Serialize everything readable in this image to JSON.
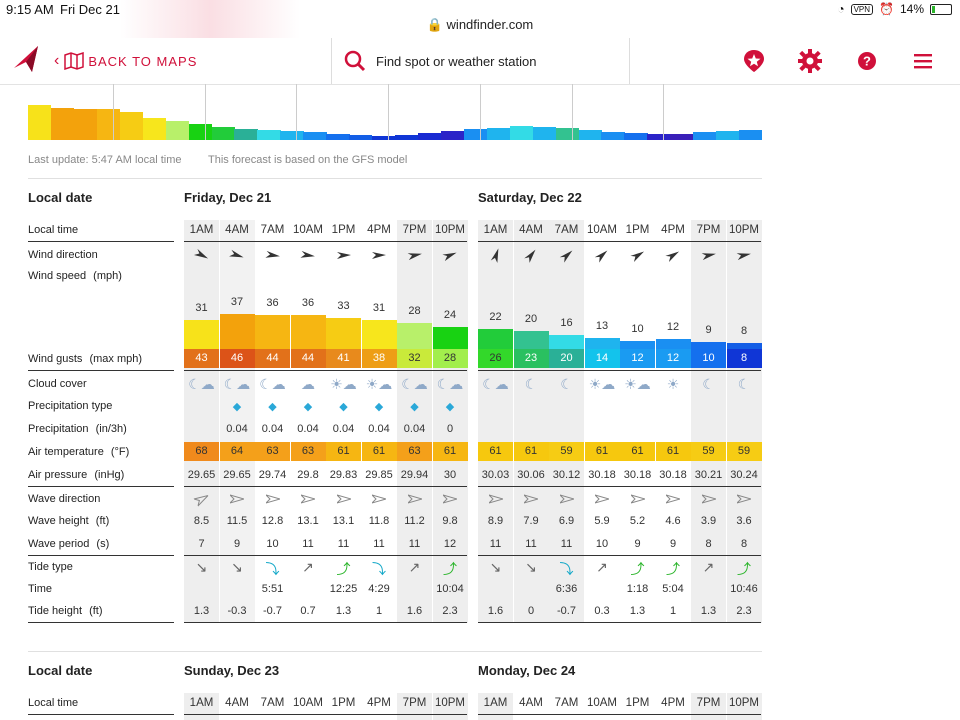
{
  "status": {
    "time": "9:15 AM",
    "date": "Fri Dec 21",
    "url": "windfinder.com",
    "battery": "14%"
  },
  "nav": {
    "back_label": "BACK TO MAPS",
    "search_placeholder": "Find spot or weather station"
  },
  "meta": {
    "last_update": "Last update: 5:47 AM local time",
    "model": "This forecast is based on the GFS model"
  },
  "labels": {
    "local_date": "Local date",
    "local_time": "Local time",
    "wind_direction": "Wind direction",
    "wind_speed": "Wind speed",
    "wind_speed_unit": "(mph)",
    "wind_gusts": "Wind gusts",
    "wind_gusts_unit": "(max mph)",
    "cloud_cover": "Cloud cover",
    "precip_type": "Precipitation type",
    "precipitation": "Precipitation",
    "precipitation_unit": "(in/3h)",
    "air_temp": "Air temperature",
    "air_temp_unit": "(°F)",
    "air_pressure": "Air pressure",
    "air_pressure_unit": "(inHg)",
    "wave_direction": "Wave direction",
    "wave_height": "Wave height",
    "wave_height_unit": "(ft)",
    "wave_period": "Wave period",
    "wave_period_unit": "(s)",
    "tide_type": "Tide type",
    "tide_time": "Time",
    "tide_height": "Tide height",
    "tide_height_unit": "(ft)"
  },
  "colors": {
    "brand": "#d0103a"
  },
  "days": [
    {
      "title": "Friday, Dec 21",
      "hours": [
        "1AM",
        "4AM",
        "7AM",
        "10AM",
        "1PM",
        "4PM",
        "7PM",
        "10PM"
      ],
      "wind_speed": [
        31,
        37,
        36,
        36,
        33,
        31,
        28,
        24
      ],
      "speed_colors": [
        "#f7e21a",
        "#f3a20c",
        "#f6b612",
        "#f6b612",
        "#f6cc14",
        "#f7e61c",
        "#b8f06a",
        "#18d212"
      ],
      "wind_gusts": [
        43,
        46,
        44,
        44,
        41,
        38,
        32,
        28
      ],
      "gust_colors": [
        "#e2711a",
        "#dc5318",
        "#e2711a",
        "#e2711a",
        "#e88a1c",
        "#ee9e16",
        "#c9ea3a",
        "#a2ee4c"
      ],
      "wind_dir_deg": [
        30,
        20,
        10,
        10,
        0,
        0,
        -10,
        -20
      ],
      "clouds": [
        "moon-cloud",
        "moon-cloud",
        "moon-cloud",
        "cloud",
        "sun-cloud",
        "sun-cloud",
        "moon-cloud",
        "moon-cloud"
      ],
      "precip_type": [
        "",
        "rain",
        "rain",
        "rain",
        "rain",
        "rain",
        "rain",
        "rain"
      ],
      "precipitation": [
        "",
        "0.04",
        "0.04",
        "0.04",
        "0.04",
        "0.04",
        "0.04",
        "0"
      ],
      "air_temp": [
        68,
        64,
        63,
        63,
        61,
        61,
        63,
        61
      ],
      "temp_colors": [
        "#f08a1c",
        "#f4a01a",
        "#f4a01a",
        "#f4a01a",
        "#f6b612",
        "#f6b612",
        "#f4a01a",
        "#f6b612"
      ],
      "air_pressure": [
        "29.65",
        "29.65",
        "29.74",
        "29.8",
        "29.83",
        "29.85",
        "29.94",
        "30"
      ],
      "wave_dir_outline": true,
      "wave_height": [
        "8.5",
        "11.5",
        "12.8",
        "13.1",
        "13.1",
        "11.8",
        "11.2",
        "9.8"
      ],
      "wave_period": [
        "7",
        "9",
        "10",
        "11",
        "11",
        "11",
        "11",
        "12"
      ],
      "tide_type": [
        "down",
        "down",
        "low",
        "up",
        "high",
        "low",
        "up",
        "high"
      ],
      "tide_time": [
        "",
        "",
        "5:51",
        "",
        "12:25",
        "4:29",
        "",
        "10:04"
      ],
      "tide_height": [
        "1.3",
        "-0.3",
        "-0.7",
        "0.7",
        "1.3",
        "1",
        "1.6",
        "2.3"
      ]
    },
    {
      "title": "Saturday, Dec 22",
      "hours": [
        "1AM",
        "4AM",
        "7AM",
        "10AM",
        "1PM",
        "4PM",
        "7PM",
        "10PM"
      ],
      "wind_speed": [
        22,
        20,
        16,
        13,
        10,
        12,
        9,
        8
      ],
      "speed_colors": [
        "#22cc3a",
        "#33c290",
        "#33dbe6",
        "#1fb4ee",
        "#1a8ff2",
        "#1a8ff2",
        "#1570ee",
        "#135ee6"
      ],
      "wind_gusts": [
        26,
        23,
        20,
        14,
        12,
        12,
        10,
        8
      ],
      "gust_colors": [
        "#33d82a",
        "#2ac060",
        "#2ab097",
        "#13c3ec",
        "#1a9bf2",
        "#1a9bf2",
        "#1470ee",
        "#1036d6"
      ],
      "wind_dir_deg": [
        -70,
        -50,
        -40,
        -40,
        -30,
        -30,
        -10,
        -10
      ],
      "clouds": [
        "moon-cloud",
        "moon",
        "moon",
        "sun-cloud",
        "sun-cloud",
        "sun",
        "moon",
        "moon"
      ],
      "precip_type": [
        "",
        "",
        "",
        "",
        "",
        "",
        "",
        ""
      ],
      "precipitation": [
        "",
        "",
        "",
        "",
        "",
        "",
        "",
        ""
      ],
      "air_temp": [
        61,
        61,
        59,
        61,
        61,
        61,
        59,
        59
      ],
      "temp_colors": [
        "#f6c80e",
        "#f6c80e",
        "#f6cc14",
        "#f6c80e",
        "#f6c80e",
        "#f6c80e",
        "#f6cc14",
        "#f6cc14"
      ],
      "air_pressure": [
        "30.03",
        "30.06",
        "30.12",
        "30.18",
        "30.18",
        "30.18",
        "30.21",
        "30.24"
      ],
      "wave_dir_outline": true,
      "wave_height": [
        "8.9",
        "7.9",
        "6.9",
        "5.9",
        "5.2",
        "4.6",
        "3.9",
        "3.6"
      ],
      "wave_period": [
        "11",
        "11",
        "11",
        "10",
        "9",
        "9",
        "8",
        "8"
      ],
      "tide_type": [
        "down",
        "down",
        "low",
        "up",
        "high",
        "high",
        "up",
        "high"
      ],
      "tide_time": [
        "",
        "",
        "6:36",
        "",
        "1:18",
        "5:04",
        "",
        "10:46"
      ],
      "tide_height": [
        "1.6",
        "0",
        "-0.7",
        "0.3",
        "1.3",
        "1",
        "1.3",
        "2.3"
      ]
    }
  ],
  "next_days": [
    {
      "title": "Sunday, Dec 23",
      "hours": [
        "1AM",
        "4AM",
        "7AM",
        "10AM",
        "1PM",
        "4PM",
        "7PM",
        "10PM"
      ]
    },
    {
      "title": "Monday, Dec 24",
      "hours": [
        "1AM",
        "4AM",
        "7AM",
        "10AM",
        "1PM",
        "4PM",
        "7PM",
        "10PM"
      ]
    }
  ],
  "overview_chart": {
    "bars": [
      "#f7e21a",
      "#f3a20c",
      "#f3a20c",
      "#f6b612",
      "#f6cc14",
      "#f7e61c",
      "#b8f06a",
      "#18d212",
      "#22cc3a",
      "#2ab097",
      "#33dbe6",
      "#1fb4ee",
      "#1a8ff2",
      "#1570ee",
      "#135ee6",
      "#1036d6",
      "#1036d6",
      "#1a2ad2",
      "#2b23c8",
      "#1a8ff2",
      "#1fb4ee",
      "#33dbe6",
      "#1fb4ee",
      "#33c290",
      "#1fb4ee",
      "#1a8ff2",
      "#1570ee",
      "#2b23c8",
      "#3a1fb8",
      "#1a8ff2",
      "#1fb4ee",
      "#1a8ff2"
    ],
    "levels": [
      0.62,
      0.58,
      0.56,
      0.55,
      0.5,
      0.4,
      0.34,
      0.28,
      0.24,
      0.2,
      0.18,
      0.16,
      0.14,
      0.1,
      0.09,
      0.08,
      0.09,
      0.12,
      0.16,
      0.2,
      0.22,
      0.25,
      0.24,
      0.22,
      0.18,
      0.15,
      0.12,
      0.1,
      0.1,
      0.14,
      0.16,
      0.18
    ]
  }
}
